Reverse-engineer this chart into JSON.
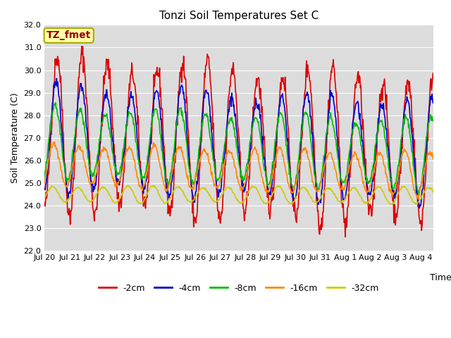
{
  "title": "Tonzi Soil Temperatures Set C",
  "ylabel": "Soil Temperature (C)",
  "xlabel": "Time",
  "annotation": "TZ_fmet",
  "ylim": [
    22.0,
    32.0
  ],
  "yticks": [
    22.0,
    23.0,
    24.0,
    25.0,
    26.0,
    27.0,
    28.0,
    29.0,
    30.0,
    31.0,
    32.0
  ],
  "plot_bg_color": "#dcdcdc",
  "fig_bg_color": "#ffffff",
  "line_colors": [
    "#dd0000",
    "#0000cc",
    "#00bb00",
    "#ff8800",
    "#cccc00"
  ],
  "line_labels": [
    "-2cm",
    "-4cm",
    "-8cm",
    "-16cm",
    "-32cm"
  ],
  "line_width": 1.2,
  "n_days": 15.5,
  "points_per_day": 48,
  "amplitudes": [
    3.2,
    2.2,
    1.5,
    0.9,
    0.35
  ],
  "means": [
    27.2,
    27.0,
    26.8,
    25.8,
    24.5
  ],
  "phase_offsets": [
    0.0,
    0.25,
    0.5,
    0.8,
    1.1
  ],
  "trend_slopes": [
    -0.05,
    -0.04,
    -0.035,
    -0.025,
    -0.003
  ],
  "noise_scales": [
    0.25,
    0.12,
    0.08,
    0.06,
    0.02
  ],
  "xtick_labels": [
    "Jul 20",
    "Jul 21",
    "Jul 22",
    "Jul 23",
    "Jul 24",
    "Jul 25",
    "Jul 26",
    "Jul 27",
    "Jul 28",
    "Jul 29",
    "Jul 30",
    "Jul 31",
    "Aug 1",
    "Aug 2",
    "Aug 3",
    "Aug 4"
  ],
  "figsize": [
    6.4,
    4.8
  ],
  "dpi": 100,
  "title_fontsize": 11,
  "axis_label_fontsize": 9,
  "tick_fontsize": 8,
  "legend_fontsize": 9,
  "annot_fontsize": 10
}
